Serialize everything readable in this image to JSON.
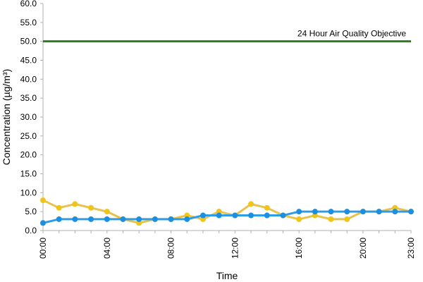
{
  "chart_data": {
    "type": "line",
    "title": "",
    "xlabel": "Time",
    "ylabel": "Concentration (µg/m³)",
    "x": [
      "00:00",
      "01:00",
      "02:00",
      "03:00",
      "04:00",
      "05:00",
      "06:00",
      "07:00",
      "08:00",
      "09:00",
      "10:00",
      "11:00",
      "12:00",
      "13:00",
      "14:00",
      "15:00",
      "16:00",
      "17:00",
      "18:00",
      "19:00",
      "20:00",
      "21:00",
      "22:00",
      "23:00"
    ],
    "x_tick_labels": [
      "00:00",
      "04:00",
      "08:00",
      "12:00",
      "16:00",
      "20:00",
      "23:00"
    ],
    "ylim": [
      0,
      60
    ],
    "y_tick_labels": [
      "0.0",
      "5.0",
      "10.0",
      "15.0",
      "20.0",
      "25.0",
      "30.0",
      "35.0",
      "40.0",
      "45.0",
      "50.0",
      "55.0",
      "60.0"
    ],
    "grid": false,
    "series": [
      {
        "color": "#f0c419",
        "line_color": "#e8c24a",
        "values": [
          8,
          6,
          7,
          6,
          5,
          3,
          2,
          3,
          3,
          4,
          3,
          5,
          4,
          7,
          6,
          4,
          3,
          4,
          3,
          3,
          5,
          5,
          6,
          5
        ]
      },
      {
        "color": "#1c8fe0",
        "line_color": "#2f9de6",
        "values": [
          2,
          3,
          3,
          3,
          3,
          3,
          3,
          3,
          3,
          3,
          4,
          4,
          4,
          4,
          4,
          4,
          5,
          5,
          5,
          5,
          5,
          5,
          5,
          5
        ]
      }
    ],
    "reference_lines": [
      {
        "label": "24 Hour Air Quality Objective",
        "value": 50,
        "color": "#2e7d1f"
      }
    ]
  }
}
